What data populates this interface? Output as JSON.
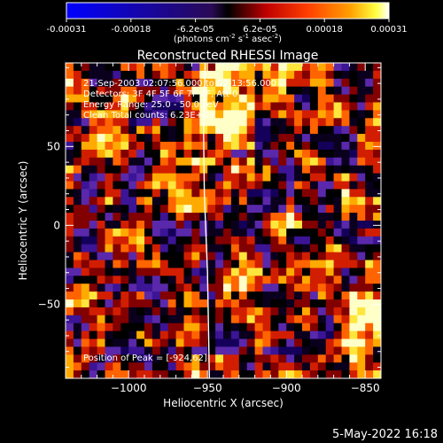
{
  "chart_data": {
    "type": "heatmap",
    "title": "Reconstructed RHESSI Image",
    "colorbar": {
      "ticks": [
        "-0.00031",
        "-0.00018",
        "-6.2e-05",
        "6.2e-05",
        "0.00018",
        "0.00031"
      ],
      "range": [
        -0.00031,
        0.00031
      ],
      "colormap": [
        "#0000ff",
        "#000000",
        "#ff0000",
        "#ff8c00",
        "#ffff00",
        "#ffffff"
      ],
      "unit_prefix": "(photons cm",
      "unit_exp1": "-2",
      "unit_mid": " s",
      "unit_exp2": "-1",
      "unit_mid2": " asec",
      "unit_exp3": "-2",
      "unit_suffix": ")"
    },
    "xlabel": "Heliocentric X (arcsec)",
    "ylabel": "Heliocentric Y (arcsec)",
    "xlim": [
      -1040,
      -840
    ],
    "ylim": [
      -97,
      103
    ],
    "xticks": [
      -1000,
      -950,
      -900,
      -850
    ],
    "yticks": [
      -50,
      0,
      50
    ],
    "limb_line": [
      {
        "x": -951.5,
        "y": 103
      },
      {
        "x": -952.5,
        "y": 60
      },
      {
        "x": -952.0,
        "y": 20
      },
      {
        "x": -950.0,
        "y": -30
      },
      {
        "x": -948.8,
        "y": -97
      }
    ],
    "annotations": [
      "21-Sep-2003 02:07:56.000 to 02:13:56.000",
      "Detectors: 3F 4F 5F 6F 7F 8F, Att 0",
      "Energy Range: 25.0 - 50.0 keV",
      "Clean    Total counts: 6.23E+03"
    ],
    "peak_label": "Position of Peak = [-924,62]",
    "peak": {
      "x": -924,
      "y": 62
    }
  },
  "footer": {
    "date": "5-May-2022 16:18"
  }
}
